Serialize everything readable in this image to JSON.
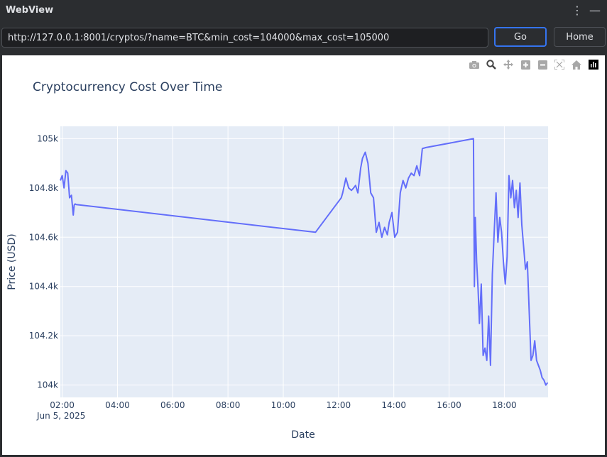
{
  "window": {
    "title": "WebView",
    "menu_icon": "vertical-dots-icon",
    "minimize_icon": "minimize-icon"
  },
  "toolbar": {
    "url": "http://127.0.0.1:8001/cryptos/?name=BTC&min_cost=104000&max_cost=105000",
    "go_label": "Go",
    "home_label": "Home"
  },
  "modebar": {
    "icons": [
      "camera-icon",
      "zoom-icon",
      "pan-icon",
      "zoom-in-icon",
      "zoom-out-icon",
      "autoscale-icon",
      "reset-axes-icon",
      "plotly-logo-icon"
    ]
  },
  "colors": {
    "line": "#636efa",
    "plot_bg": "#e5ecf6",
    "focus": "#3574f0"
  },
  "chart_data": {
    "type": "line",
    "title": "Cryptocurrency Cost Over Time",
    "xlabel": "Date",
    "ylabel": "Price (USD)",
    "xrange": [
      "2025-06-05 01:56",
      "2025-06-05 19:35"
    ],
    "ylim": [
      103950,
      105050
    ],
    "x_ticks": [
      "02:00",
      "04:00",
      "06:00",
      "08:00",
      "10:00",
      "12:00",
      "14:00",
      "16:00",
      "18:00"
    ],
    "x_tick_hours": [
      2,
      4,
      6,
      8,
      10,
      12,
      14,
      16,
      18
    ],
    "x_sub_label": "Jun 5, 2025",
    "y_ticks": [
      "104k",
      "104.2k",
      "104.4k",
      "104.6k",
      "104.8k",
      "105k"
    ],
    "y_tick_values": [
      104000,
      104200,
      104400,
      104600,
      104800,
      105000
    ],
    "grid": true,
    "legend": "none",
    "series": [
      {
        "x": [
          "2025-06-05 01:56",
          "2025-06-05 02:00",
          "2025-06-05 02:04",
          "2025-06-05 02:08",
          "2025-06-05 02:12",
          "2025-06-05 02:16",
          "2025-06-05 02:20",
          "2025-06-05 02:24",
          "2025-06-05 02:26",
          "2025-06-05 02:28",
          "2025-06-05 02:30",
          "2025-06-05 02:32",
          "2025-06-05 11:10",
          "2025-06-05 12:06",
          "2025-06-05 12:09",
          "2025-06-05 12:16",
          "2025-06-05 12:22",
          "2025-06-05 12:28",
          "2025-06-05 12:33",
          "2025-06-05 12:37",
          "2025-06-05 12:42",
          "2025-06-05 12:48",
          "2025-06-05 12:52",
          "2025-06-05 12:58",
          "2025-06-05 13:04",
          "2025-06-05 13:10",
          "2025-06-05 13:16",
          "2025-06-05 13:22",
          "2025-06-05 13:28",
          "2025-06-05 13:34",
          "2025-06-05 13:40",
          "2025-06-05 13:46",
          "2025-06-05 13:50",
          "2025-06-05 13:56",
          "2025-06-05 14:02",
          "2025-06-05 14:08",
          "2025-06-05 14:14",
          "2025-06-05 14:20",
          "2025-06-05 14:26",
          "2025-06-05 14:32",
          "2025-06-05 14:38",
          "2025-06-05 14:44",
          "2025-06-05 14:50",
          "2025-06-05 14:56",
          "2025-06-05 15:02",
          "2025-06-05 15:06",
          "2025-06-05 15:10",
          "2025-06-05 16:53",
          "2025-06-05 16:55",
          "2025-06-05 16:57",
          "2025-06-05 17:00",
          "2025-06-05 17:03",
          "2025-06-05 17:06",
          "2025-06-05 17:10",
          "2025-06-05 17:14",
          "2025-06-05 17:18",
          "2025-06-05 17:22",
          "2025-06-05 17:26",
          "2025-06-05 17:30",
          "2025-06-05 17:34",
          "2025-06-05 17:38",
          "2025-06-05 17:42",
          "2025-06-05 17:46",
          "2025-06-05 17:50",
          "2025-06-05 17:54",
          "2025-06-05 17:58",
          "2025-06-05 18:02",
          "2025-06-05 18:06",
          "2025-06-05 18:10",
          "2025-06-05 18:14",
          "2025-06-05 18:18",
          "2025-06-05 18:22",
          "2025-06-05 18:26",
          "2025-06-05 18:30",
          "2025-06-05 18:34",
          "2025-06-05 18:38",
          "2025-06-05 18:42",
          "2025-06-05 18:46",
          "2025-06-05 18:50",
          "2025-06-05 18:54",
          "2025-06-05 18:58",
          "2025-06-05 19:02",
          "2025-06-05 19:06",
          "2025-06-05 19:10",
          "2025-06-05 19:14",
          "2025-06-05 19:18",
          "2025-06-05 19:22",
          "2025-06-05 19:26",
          "2025-06-05 19:30",
          "2025-06-05 19:34"
        ],
        "y": [
          104830,
          104850,
          104800,
          104870,
          104860,
          104760,
          104770,
          104690,
          104730,
          104735,
          104733,
          104732,
          104620,
          104760,
          104780,
          104840,
          104800,
          104790,
          104800,
          104810,
          104780,
          104880,
          104920,
          104945,
          104900,
          104780,
          104760,
          104620,
          104660,
          104600,
          104640,
          104610,
          104660,
          104700,
          104600,
          104620,
          104780,
          104830,
          104800,
          104840,
          104860,
          104850,
          104890,
          104850,
          104960,
          104962,
          104964,
          105000,
          104400,
          104680,
          104500,
          104390,
          104250,
          104410,
          104120,
          104150,
          104100,
          104280,
          104080,
          104450,
          104620,
          104780,
          104580,
          104680,
          104620,
          104500,
          104410,
          104520,
          104850,
          104760,
          104830,
          104720,
          104790,
          104680,
          104820,
          104650,
          104560,
          104470,
          104500,
          104300,
          104100,
          104120,
          104180,
          104100,
          104080,
          104060,
          104030,
          104020,
          104000,
          104010
        ]
      }
    ]
  }
}
